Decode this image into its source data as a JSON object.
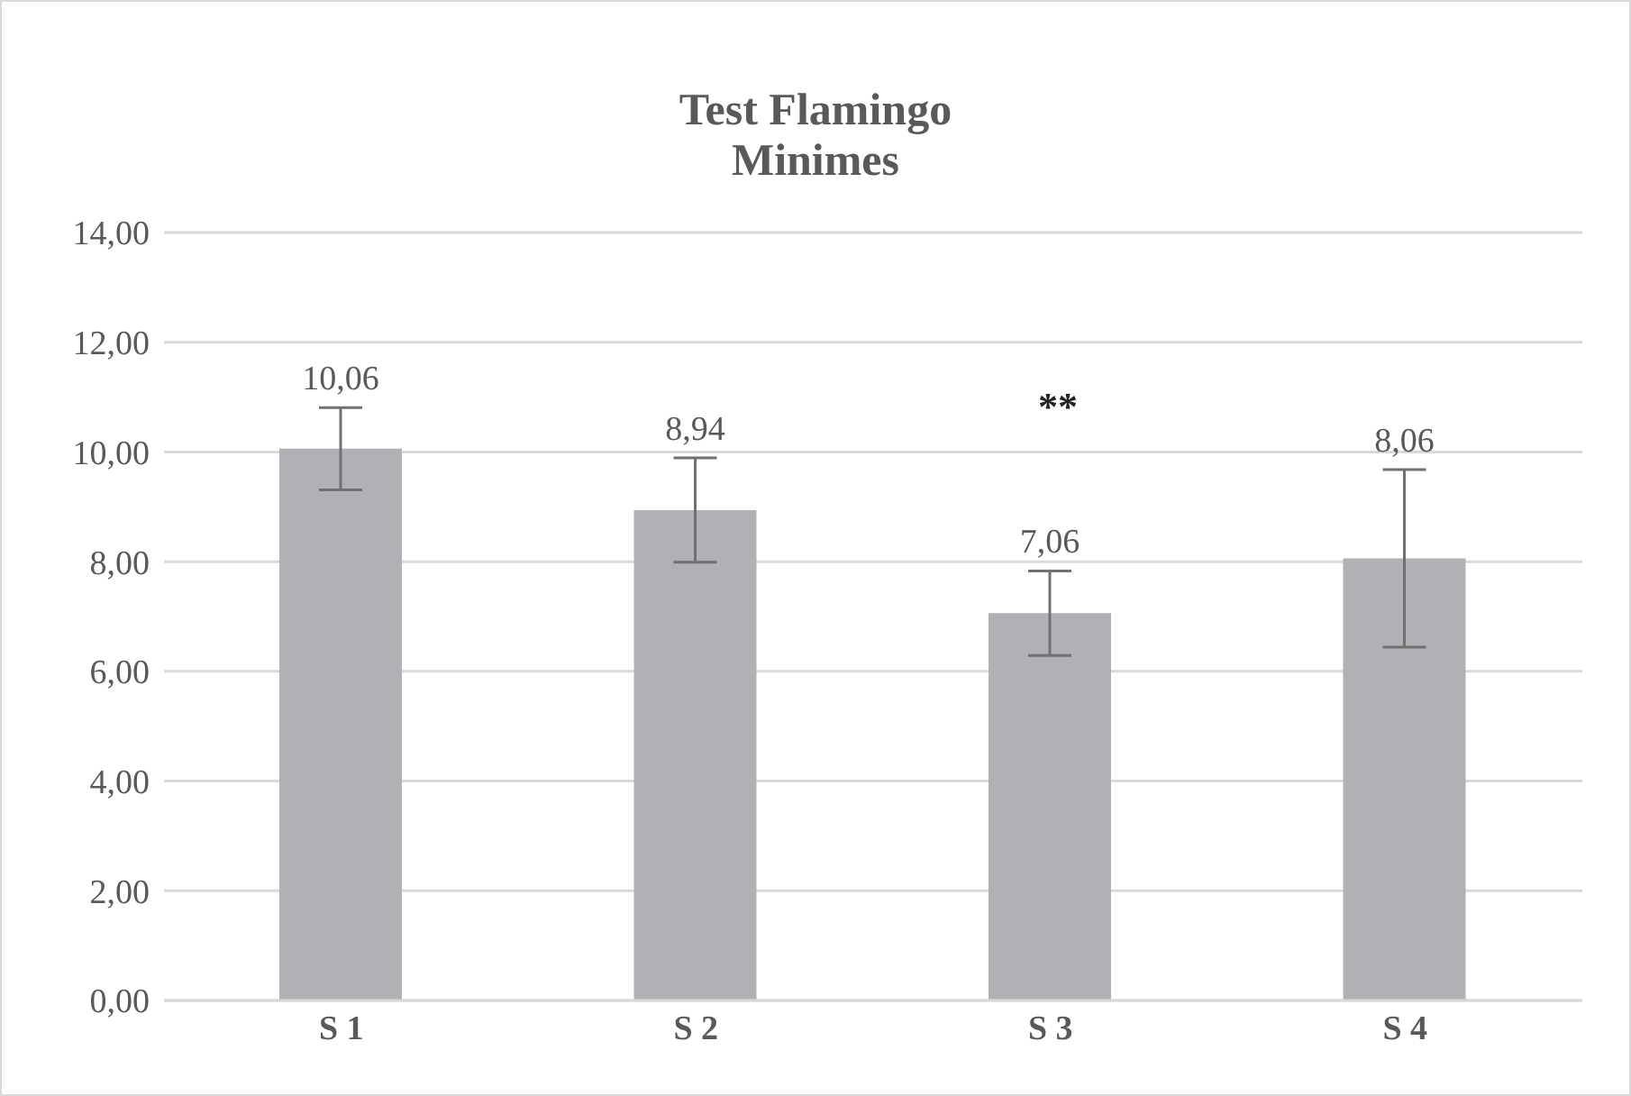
{
  "chart_data": {
    "type": "bar",
    "title": "Test Flamingo",
    "subtitle": "Minimes",
    "categories": [
      "S 1",
      "S 2",
      "S 3",
      "S 4"
    ],
    "values": [
      10.06,
      8.94,
      7.06,
      8.06
    ],
    "value_labels": [
      "10,06",
      "8,94",
      "7,06",
      "8,06"
    ],
    "errors": [
      0.75,
      0.95,
      0.77,
      1.62
    ],
    "color": "#b0b1b4",
    "ylim": [
      0,
      14
    ],
    "yticks": [
      {
        "value": 0,
        "label": "0,00"
      },
      {
        "value": 2,
        "label": "2,00"
      },
      {
        "value": 4,
        "label": "4,00"
      },
      {
        "value": 6,
        "label": "6,00"
      },
      {
        "value": 8,
        "label": "8,00"
      },
      {
        "value": 10,
        "label": "10,00"
      },
      {
        "value": 12,
        "label": "12,00"
      },
      {
        "value": 14,
        "label": "14,00"
      }
    ],
    "grid": "y",
    "annotations": [
      "**"
    ]
  }
}
